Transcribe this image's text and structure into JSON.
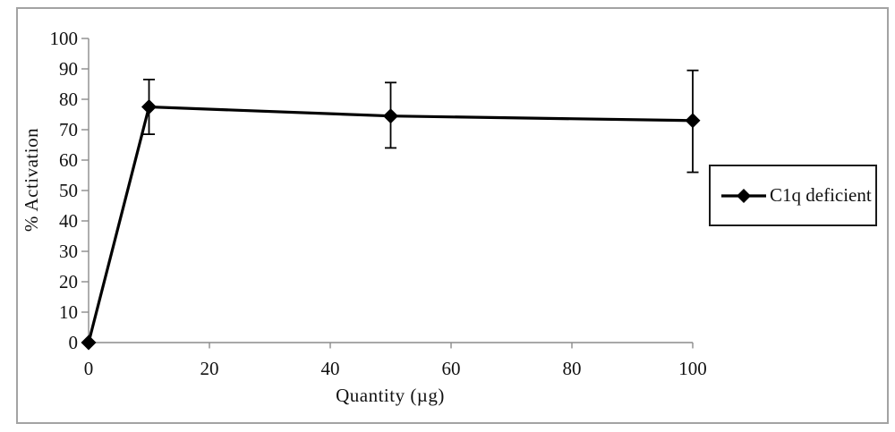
{
  "figure": {
    "background": "#ffffff",
    "border_color": "#a3a3a3"
  },
  "chart_data": {
    "type": "line",
    "title": "",
    "xlabel": "Quantity (µg)",
    "ylabel": "% Activation",
    "xlim": [
      0,
      100
    ],
    "ylim": [
      0,
      100
    ],
    "x_ticks": [
      0,
      20,
      40,
      60,
      80,
      100
    ],
    "y_ticks": [
      0,
      10,
      20,
      30,
      40,
      50,
      60,
      70,
      80,
      90,
      100
    ],
    "grid": false,
    "legend": {
      "position": "middle-right",
      "entries": [
        "C1q deficient"
      ]
    },
    "colors": {
      "series": "#000000",
      "axis": "#8c8c8c",
      "text": "#111111"
    },
    "series": [
      {
        "name": "C1q deficient",
        "marker": "diamond",
        "color": "#000000",
        "points": [
          {
            "x": 0,
            "y": 0,
            "err_plus": 0,
            "err_minus": 0
          },
          {
            "x": 10,
            "y": 77.5,
            "err_plus": 9,
            "err_minus": 9
          },
          {
            "x": 50,
            "y": 74.5,
            "err_plus": 11,
            "err_minus": 10.5
          },
          {
            "x": 100,
            "y": 73,
            "err_plus": 16.5,
            "err_minus": 17
          }
        ]
      }
    ]
  }
}
